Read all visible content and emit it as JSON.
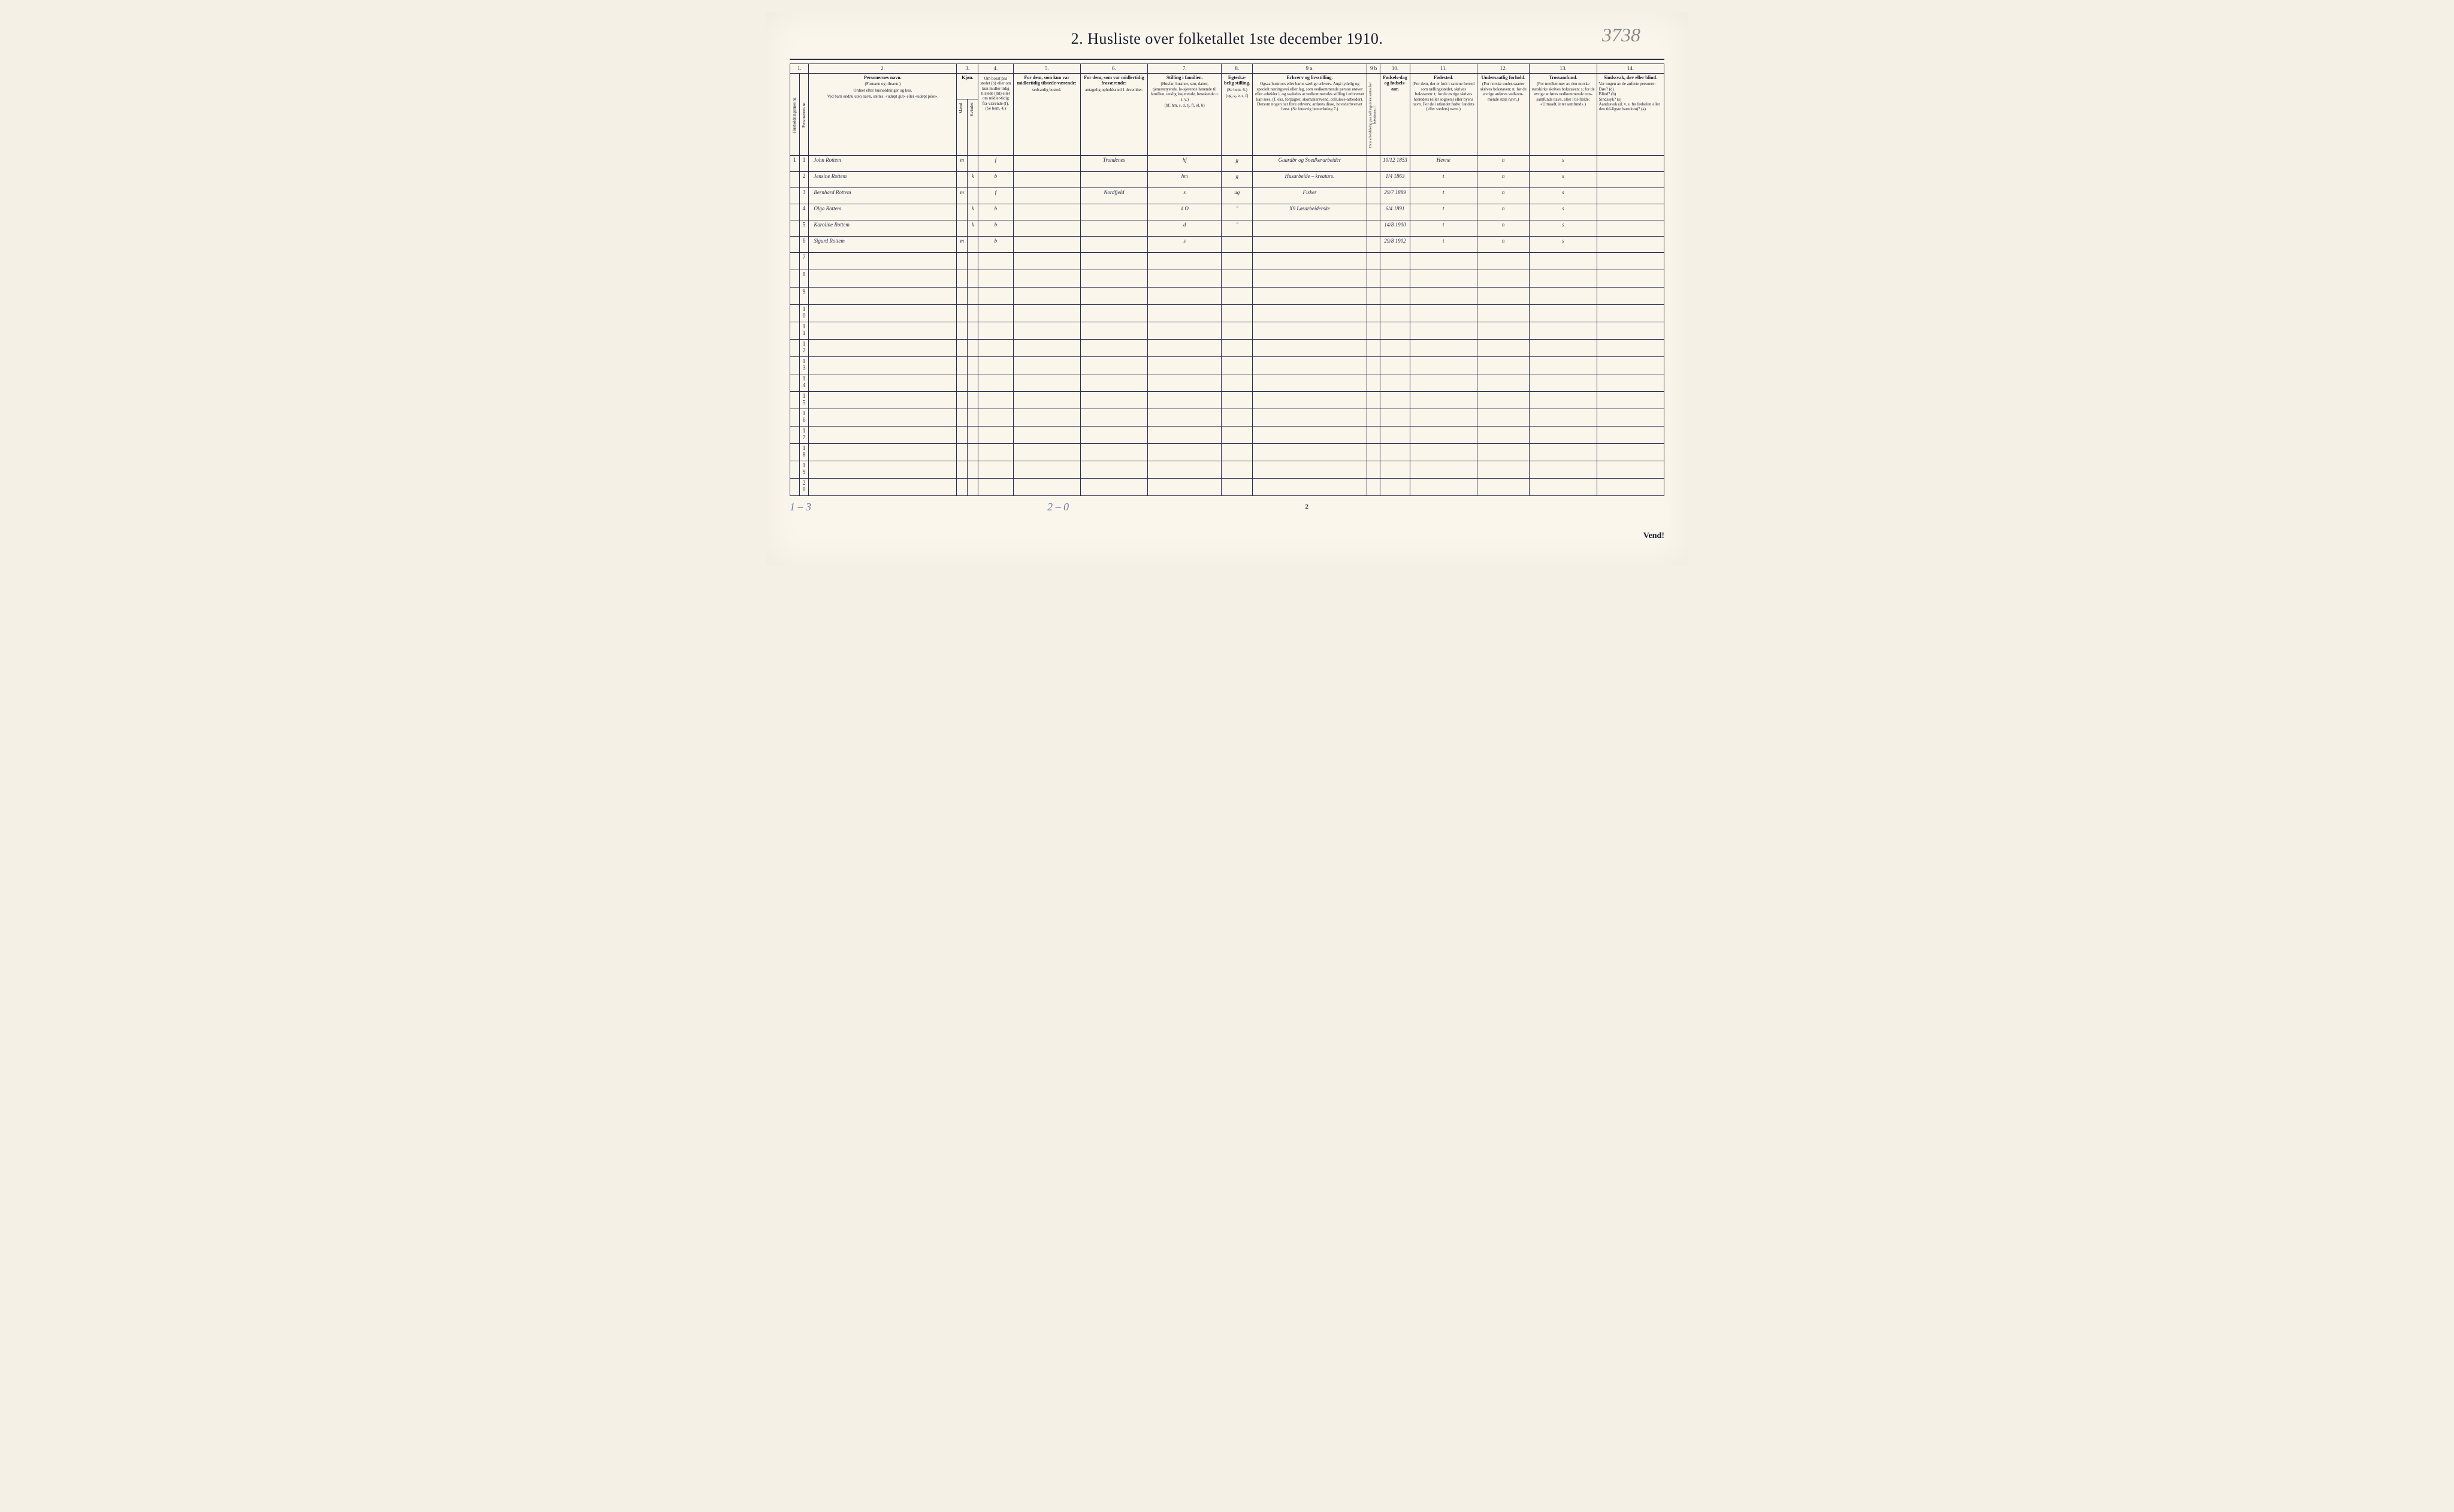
{
  "title": "2.  Husliste over folketallet 1ste december 1910.",
  "page_number_handwritten": "3738",
  "columns": {
    "nums": [
      "1.",
      "2.",
      "3.",
      "4.",
      "5.",
      "6.",
      "7.",
      "8.",
      "9 a.",
      "9 b",
      "10.",
      "11.",
      "12.",
      "13.",
      "14."
    ],
    "h1": {
      "c1a": "Husholdningernes nr.",
      "c1b": "Personernes nr.",
      "c2_head": "Personernes navn.",
      "c2_sub1": "(Fornavn og tilnavn.)",
      "c2_sub2": "Ordnet efter husholdninger og hus.",
      "c2_sub3": "Ved barn endnu uten navn, sættes: «udøpt gut» eller «udøpt pike».",
      "c3_head": "Kjøn.",
      "c3_m": "Mænd.",
      "c3_k": "Kvinder.",
      "c3_mk": "m.  k.",
      "c4_head": "Om bosat paa stedet (b) eller om kun midler-tidig tilstede (mt) eller om midler-tidig fra-værende (f). (Se bem. 4.)",
      "c5_head": "For dem, som kun var midlertidig tilstede-værende:",
      "c5_sub": "sedvanlig bosted.",
      "c6_head": "For dem, som var midlertidig fraværende:",
      "c6_sub": "antagelig opholdssted 1 december.",
      "c7_head": "Stilling i familien.",
      "c7_sub1": "(Husfar, husmor, søn, datter, tjenestetyende, lo-sjerende hørende til familien, enslig losjerende, besøkende o. s. v.)",
      "c7_sub2": "(hf, hm, s, d, tj, fl, el, b)",
      "c8_head": "Egteska-belig stilling.",
      "c8_sub1": "(Se bem. 6.)",
      "c8_sub2": "(ug, g, e, s, f)",
      "c9a_head": "Erhverv og livsstilling.",
      "c9a_sub": "Ogsaa husmors eller barns særlige erhverv. Angi tydelig og specielt næringsvei eller fag, som vedkommende person utøver eller arbeider i, og saaledes at vedkommendes stilling i erhvervet kan sees, (f. eks. forpagter, skomakersvend, cellulose-arbeider). Dersom nogen har flere erhverv, anføres disse, hovederhvervet først. (Se forøvrig bemerkning 7.)",
      "c9b_head": "Hvis arbeidsledig paa tællingstiden sættes her bokstaven: l",
      "c10_head": "Fødsels-dag og fødsels-aar.",
      "c11_head": "Fødested.",
      "c11_sub": "(For dem, der er født i samme herred som tællingsstedet, skrives bokstaven: t; for de øvrige skrives herredets (eller sognets) eller byens navn. For de i utlandet fødte: landets (eller stedets) navn.)",
      "c12_head": "Undersaatlig forhold.",
      "c12_sub": "(For norske under-saatter skrives bokstaven: n; for de øvrige anføres vedkom-mende stats navn.)",
      "c13_head": "Trossamfund.",
      "c13_sub": "(For medlemmer av den norske statskirke skrives bokstaven: s; for de øvrige anføres vedkommende tros-samfunds navn, eller i til-fælde: «Uttraadt, intet samfund».)",
      "c14_head": "Sindssvak, døv eller blind.",
      "c14_sub": "Var nogen av de anførte personer:\nDøv?       (d)\nBlind?     (b)\nSindssyk? (s)\nAandssvak (d. v. s. fra fødselen eller den tid-ligste barndom)? (a)"
    }
  },
  "rows": [
    {
      "hh": "1",
      "n": "1",
      "name": "John Rottem",
      "m": "m",
      "k": "",
      "bf": "f",
      "c5": "",
      "c6": "Trondenes",
      "c7": "hf",
      "c8": "g",
      "c9a": "Gaardbr og Snedkerarbeider",
      "c9b": "",
      "c10": "10/12 1853",
      "c11": "Hevne",
      "c12": "n",
      "c13": "s",
      "c14": ""
    },
    {
      "hh": "",
      "n": "2",
      "name": "Jensine Rottem",
      "m": "",
      "k": "k",
      "bf": "b",
      "c5": "",
      "c6": "",
      "c7": "hm",
      "c8": "g",
      "c9a": "Husarbeide – kreaturs.",
      "c9b": "",
      "c10": "1/4 1863",
      "c11": "t",
      "c12": "n",
      "c13": "s",
      "c14": ""
    },
    {
      "hh": "",
      "n": "3",
      "name": "Bernhard Rottem",
      "m": "m",
      "k": "",
      "bf": "f",
      "c5": "",
      "c6": "Nordfjeld",
      "c7": "s",
      "c8": "ug",
      "c9a": "Fisker",
      "c9b": "",
      "c10": "29/7 1889",
      "c11": "t",
      "c12": "n",
      "c13": "s",
      "c14": ""
    },
    {
      "hh": "",
      "n": "4",
      "name": "Olga Rottem",
      "m": "",
      "k": "k",
      "bf": "b",
      "c5": "",
      "c6": "",
      "c7": "d   O",
      "c8": "\"",
      "c9a": "X9  Løsarbeiderske",
      "c9b": "",
      "c10": "6/4 1891",
      "c11": "t",
      "c12": "n",
      "c13": "s",
      "c14": ""
    },
    {
      "hh": "",
      "n": "5",
      "name": "Karoline Rottem",
      "m": "",
      "k": "k",
      "bf": "b",
      "c5": "",
      "c6": "",
      "c7": "d",
      "c8": "\"",
      "c9a": "",
      "c9b": "",
      "c10": "14/8 1900",
      "c11": "t",
      "c12": "n",
      "c13": "s",
      "c14": ""
    },
    {
      "hh": "",
      "n": "6",
      "name": "Sigurd Rottem",
      "m": "m",
      "k": "",
      "bf": "b",
      "c5": "",
      "c6": "",
      "c7": "s",
      "c8": "",
      "c9a": "",
      "c9b": "",
      "c10": "29/8 1902",
      "c11": "t",
      "c12": "n",
      "c13": "s",
      "c14": ""
    }
  ],
  "empty_row_count": 14,
  "footer": {
    "left": "1 – 3",
    "mid": "2 – 0",
    "page": "2",
    "vend": "Vend!"
  },
  "style": {
    "page_bg": "#faf6ec",
    "body_bg": "#f4f0e6",
    "line_color": "#2a2a4a",
    "handwriting_color": "#2a2a4a",
    "pencil_color": "#6a7aaa",
    "title_fontsize": 26,
    "header_fontsize": 8,
    "cell_fontsize": 14
  }
}
